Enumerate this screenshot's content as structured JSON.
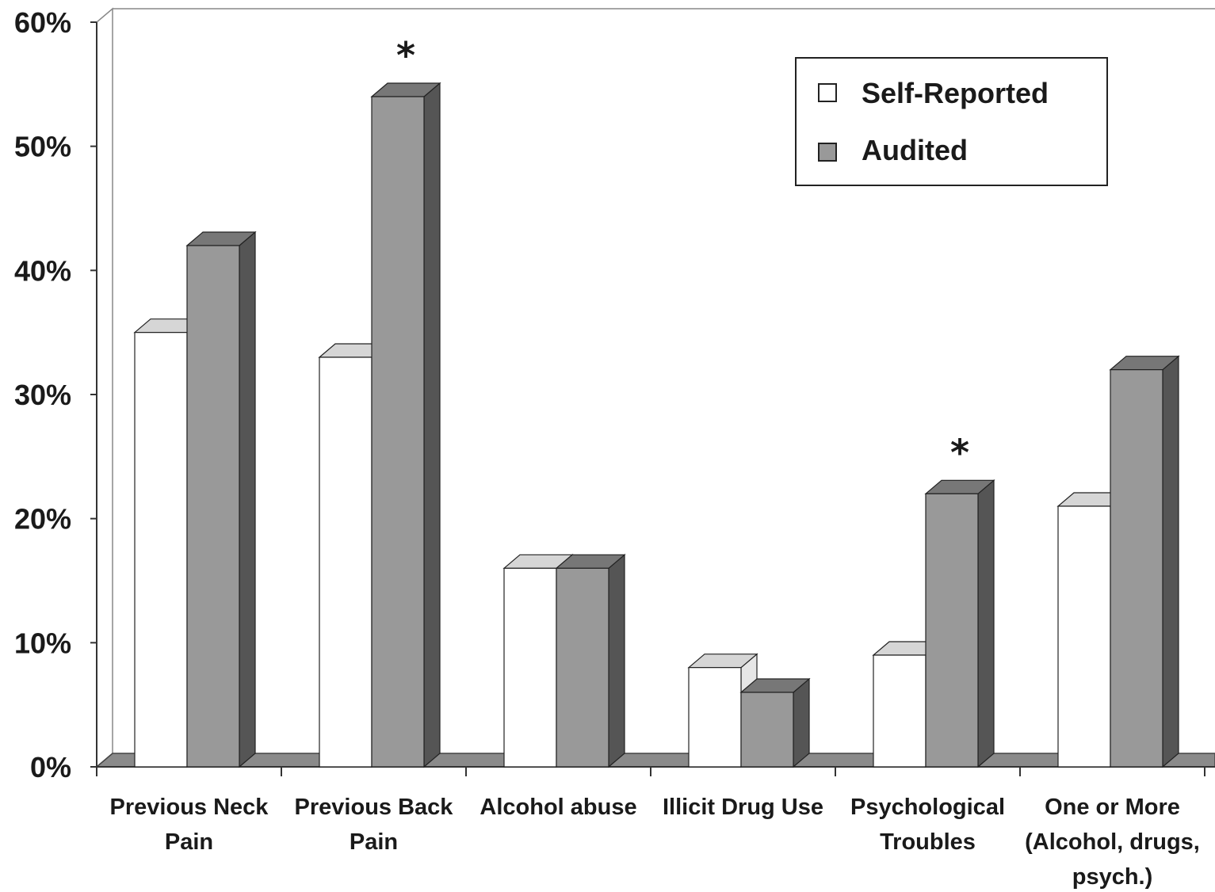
{
  "chart_data": {
    "type": "bar",
    "categories": [
      [
        "Previous Neck",
        "Pain"
      ],
      [
        "Previous Back",
        "Pain"
      ],
      [
        "Alcohol abuse"
      ],
      [
        "Illicit Drug Use"
      ],
      [
        "Psychological",
        "Troubles"
      ],
      [
        "One or More",
        "(Alcohol, drugs,",
        "psych.)"
      ]
    ],
    "series": [
      {
        "name": "Self-Reported",
        "values": [
          35,
          33,
          16,
          8,
          9,
          21
        ]
      },
      {
        "name": "Audited",
        "values": [
          42,
          54,
          16,
          6,
          22,
          32
        ]
      }
    ],
    "annotations": [
      {
        "category_index": 1,
        "text": "*"
      },
      {
        "category_index": 4,
        "text": "*"
      }
    ],
    "ylim": [
      0,
      60
    ],
    "yticks": [
      "0%",
      "10%",
      "20%",
      "30%",
      "40%",
      "50%",
      "60%"
    ],
    "legend_position": "top-right",
    "colors": {
      "self_reported_front": "#ffffff",
      "self_reported_side": "#e6e6e6",
      "self_reported_top": "#d6d6d6",
      "audited_front": "#999999",
      "audited_side": "#555555",
      "audited_top": "#777777",
      "floor": "#8a8a8a",
      "outline": "#222222"
    },
    "grid": false
  }
}
